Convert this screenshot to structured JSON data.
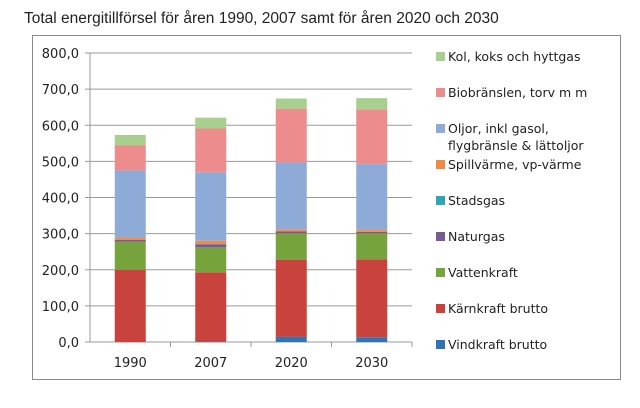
{
  "chart_data": {
    "type": "bar",
    "stacked": true,
    "title": "Total energitillförsel för åren 1990, 2007 samt för åren 2020 och 2030",
    "xlabel": "",
    "ylabel": "",
    "categories": [
      "1990",
      "2007",
      "2020",
      "2030"
    ],
    "ylim": [
      0,
      800
    ],
    "yticks": [
      "0,0",
      "100,0",
      "200,0",
      "300,0",
      "400,0",
      "500,0",
      "600,0",
      "700,0",
      "800,0"
    ],
    "ytick_values": [
      0,
      100,
      200,
      300,
      400,
      500,
      600,
      700,
      800
    ],
    "grid": true,
    "legend_position": "right",
    "series": [
      {
        "name": "Vindkraft brutto",
        "color": "#2e75b6",
        "values": [
          0,
          1,
          14,
          13
        ]
      },
      {
        "name": "Kärnkraft brutto",
        "color": "#c9433e",
        "values": [
          200,
          192,
          214,
          216
        ]
      },
      {
        "name": "Vattenkraft",
        "color": "#77a33d",
        "values": [
          78,
          69,
          73,
          72
        ]
      },
      {
        "name": "Naturgas",
        "color": "#7a5a96",
        "values": [
          5,
          8,
          5,
          4
        ]
      },
      {
        "name": "Stadsgas",
        "color": "#2fa3b8",
        "values": [
          0,
          1,
          0,
          0
        ]
      },
      {
        "name": "Spillvärme, vp-värme",
        "color": "#ef8a47",
        "values": [
          6,
          9,
          6,
          6
        ]
      },
      {
        "name": "Oljor, inkl gasol, flygbränsle & lättoljor",
        "color": "#8eaad6",
        "values": [
          186,
          190,
          185,
          182
        ]
      },
      {
        "name": "Biobränslen, torv m m",
        "color": "#ec8c8c",
        "values": [
          69,
          121,
          149,
          151
        ]
      },
      {
        "name": "Kol, koks och hyttgas",
        "color": "#a8cf8e",
        "values": [
          29,
          30,
          28,
          31
        ]
      }
    ],
    "legend_order": [
      {
        "label_lines": [
          "Kol, koks och hyttgas"
        ],
        "series": 8
      },
      {
        "label_lines": [
          "Biobränslen, torv m m"
        ],
        "series": 7
      },
      {
        "label_lines": [
          "Oljor, inkl gasol,",
          "flygbränsle & lättoljor"
        ],
        "series": 6
      },
      {
        "label_lines": [
          "Spillvärme, vp-värme"
        ],
        "series": 5
      },
      {
        "label_lines": [
          "Stadsgas"
        ],
        "series": 4
      },
      {
        "label_lines": [
          "Naturgas"
        ],
        "series": 3
      },
      {
        "label_lines": [
          "Vattenkraft"
        ],
        "series": 2
      },
      {
        "label_lines": [
          "Kärnkraft brutto"
        ],
        "series": 1
      },
      {
        "label_lines": [
          "Vindkraft brutto"
        ],
        "series": 0
      }
    ]
  }
}
